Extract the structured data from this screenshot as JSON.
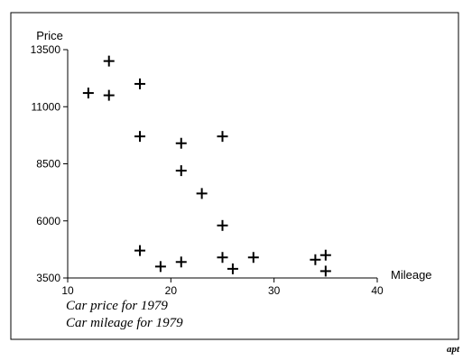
{
  "chart_data": {
    "type": "scatter",
    "xlabel": "Mileage",
    "ylabel": "Price",
    "xlim": [
      10,
      40
    ],
    "ylim": [
      3500,
      13500
    ],
    "xticks": [
      10,
      20,
      30,
      40
    ],
    "yticks": [
      3500,
      6000,
      8500,
      11000,
      13500
    ],
    "marker": "plus",
    "grid": false,
    "captions": [
      "Car price for 1979",
      "Car mileage for 1979"
    ],
    "credit": "apt",
    "points": [
      {
        "x": 12,
        "y": 11600
      },
      {
        "x": 14,
        "y": 13000
      },
      {
        "x": 14,
        "y": 11500
      },
      {
        "x": 17,
        "y": 12000
      },
      {
        "x": 17,
        "y": 9700
      },
      {
        "x": 17,
        "y": 4700
      },
      {
        "x": 19,
        "y": 4000
      },
      {
        "x": 21,
        "y": 9400
      },
      {
        "x": 21,
        "y": 8200
      },
      {
        "x": 21,
        "y": 4200
      },
      {
        "x": 23,
        "y": 7200
      },
      {
        "x": 25,
        "y": 9700
      },
      {
        "x": 25,
        "y": 5800
      },
      {
        "x": 25,
        "y": 4400
      },
      {
        "x": 26,
        "y": 3900
      },
      {
        "x": 28,
        "y": 4400
      },
      {
        "x": 34,
        "y": 4300
      },
      {
        "x": 35,
        "y": 4500
      },
      {
        "x": 35,
        "y": 3800
      }
    ]
  }
}
